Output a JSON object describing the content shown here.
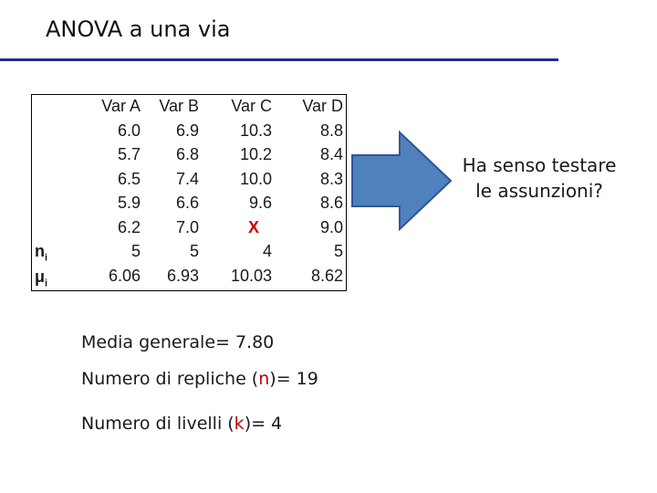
{
  "title": "ANOVA a una via",
  "table": {
    "columns": [
      {
        "header": "Var A",
        "values": [
          "6.0",
          "5.7",
          "6.5",
          "5.9",
          "6.2"
        ],
        "n": "5",
        "mean": "6.06"
      },
      {
        "header": "Var B",
        "values": [
          "6.9",
          "6.8",
          "7.4",
          "6.6",
          "7.0"
        ],
        "n": "5",
        "mean": "6.93"
      },
      {
        "header": "Var C",
        "values": [
          "10.3",
          "10.2",
          "10.0",
          "9.6",
          "X"
        ],
        "n": "4",
        "mean": "10.03"
      },
      {
        "header": "Var D",
        "values": [
          "8.8",
          "8.4",
          "8.3",
          "8.6",
          "9.0"
        ],
        "n": "5",
        "mean": "8.62"
      }
    ],
    "row_labels": {
      "n_base": "n",
      "mu_base": "μ",
      "sub": "i"
    }
  },
  "question": "Ha senso testare le assunzioni?",
  "notes": {
    "media_prefix": "Media generale= 7.80",
    "repliche_prefix": "Numero di repliche (",
    "repliche_sym": "n",
    "repliche_suffix": ")= 19",
    "livelli_prefix": "Numero di livelli (",
    "livelli_sym": "k",
    "livelli_suffix": ")= 4"
  },
  "colors": {
    "rule": "#1f2d8a",
    "arrow_fill": "#4f81bd",
    "arrow_stroke": "#2f5597",
    "highlight": "#c00000"
  }
}
